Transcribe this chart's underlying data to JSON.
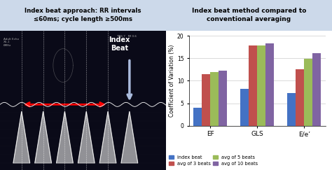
{
  "left_title": "Index beat approach: RR intervals\n≤60ms; cycle length ≥500ms",
  "left_title_bg": "#ccd9ea",
  "left_img_bg": "#1c1c2e",
  "index_beat_label": "Index\nBeat",
  "right_title": "Index beat method compared to\nconventional averaging",
  "right_title_bg": "#ccd9ea",
  "categories": [
    "EF",
    "GLS",
    "E/e’"
  ],
  "series": {
    "index beat": [
      4.0,
      8.2,
      7.2
    ],
    "avg of 3 beats": [
      11.5,
      17.8,
      12.5
    ],
    "avg of 5 beats": [
      11.9,
      17.8,
      14.9
    ],
    "avg of 10 beats": [
      12.2,
      18.3,
      16.1
    ]
  },
  "colors": {
    "index beat": "#4472c4",
    "avg of 3 beats": "#c0504d",
    "avg of 5 beats": "#9bbb59",
    "avg of 10 beats": "#8064a2"
  },
  "ylabel": "Coefficient of Variation (%)",
  "ylim": [
    0.0,
    20.0
  ],
  "yticks": [
    0.0,
    5.0,
    10.0,
    15.0,
    20.0
  ],
  "bar_width": 0.18,
  "figsize": [
    4.74,
    2.43
  ],
  "dpi": 100
}
